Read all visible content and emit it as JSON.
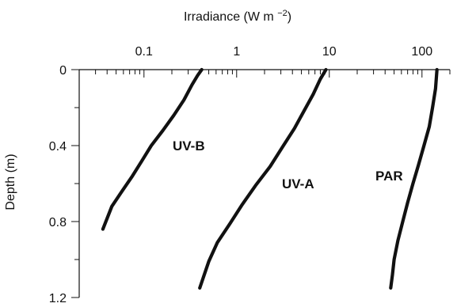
{
  "chart_data": {
    "type": "line",
    "title": "",
    "xlabel": "Irradiance (W m−2)",
    "ylabel": "Depth (m)",
    "x_scale": "log",
    "x_axis_position": "top",
    "y_inverted": true,
    "xlim": [
      0.02,
      200
    ],
    "ylim": [
      0,
      1.2
    ],
    "x_tick_labels": [
      "0.1",
      "1",
      "10",
      "100"
    ],
    "x_tick_values": [
      0.1,
      1,
      10,
      100
    ],
    "y_tick_labels": [
      "0",
      "0.4",
      "0.8",
      "1.2"
    ],
    "y_tick_values": [
      0,
      0.4,
      0.8,
      1.2
    ],
    "grid": false,
    "series": [
      {
        "name": "UV-B",
        "x": [
          0.42,
          0.38,
          0.33,
          0.27,
          0.21,
          0.16,
          0.12,
          0.095,
          0.075,
          0.058,
          0.045,
          0.036
        ],
        "y": [
          0.0,
          0.03,
          0.08,
          0.16,
          0.24,
          0.32,
          0.4,
          0.48,
          0.56,
          0.64,
          0.72,
          0.84
        ]
      },
      {
        "name": "UV-A",
        "x": [
          9.2,
          8.0,
          6.7,
          5.3,
          4.2,
          3.1,
          2.3,
          1.6,
          1.15,
          0.85,
          0.62,
          0.5,
          0.4
        ],
        "y": [
          0.0,
          0.05,
          0.13,
          0.22,
          0.31,
          0.41,
          0.51,
          0.61,
          0.71,
          0.81,
          0.91,
          1.01,
          1.15
        ]
      },
      {
        "name": "PAR",
        "x": [
          145,
          140,
          130,
          120,
          105,
          92,
          80,
          70,
          62,
          55,
          50,
          48,
          46
        ],
        "y": [
          0.0,
          0.1,
          0.2,
          0.3,
          0.4,
          0.5,
          0.6,
          0.7,
          0.8,
          0.9,
          1.0,
          1.08,
          1.15
        ]
      }
    ]
  }
}
